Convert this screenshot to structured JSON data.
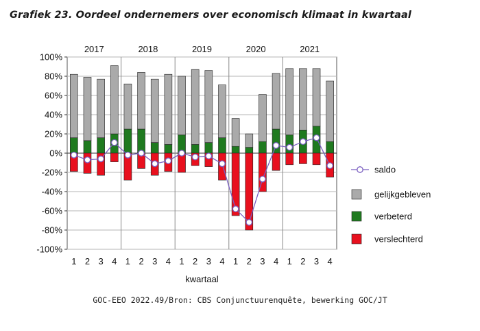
{
  "title": "Grafiek 23. Oordeel ondernemers over economisch klimaat in kwartaal",
  "source": "GOC-EEO 2022.49/Bron: CBS Conjunctuurenquête, bewerking GOC/JT",
  "colors": {
    "gelijkgebleven": "#aaaaaa",
    "verbeterd": "#1f7a1f",
    "verslechterd": "#e8101e",
    "saldo": "#7a5fc0"
  },
  "chart_data": {
    "type": "bar",
    "xlabel": "kwartaal",
    "ylim": [
      -100,
      100
    ],
    "y_ticks": [
      "100%",
      "80%",
      "60%",
      "40%",
      "20%",
      "0%",
      "-20%",
      "-40%",
      "-60%",
      "-80%",
      "-100%"
    ],
    "grid": true,
    "legend_position": "right",
    "years": [
      "2017",
      "2018",
      "2019",
      "2020",
      "2021"
    ],
    "categories": [
      "1",
      "2",
      "3",
      "4",
      "1",
      "2",
      "3",
      "4",
      "1",
      "2",
      "3",
      "4",
      "1",
      "2",
      "3",
      "4",
      "1",
      "2",
      "3",
      "4"
    ],
    "series": [
      {
        "name": "saldo",
        "kind": "line",
        "values": [
          -2,
          -7,
          -6,
          11,
          -2,
          0,
          -11,
          -8,
          0,
          -4,
          -3,
          -11,
          -58,
          -72,
          -27,
          8,
          6,
          12,
          16,
          -13
        ]
      },
      {
        "name": "gelijkgebleven",
        "kind": "stacked-bar",
        "values": [
          66,
          66,
          61,
          71,
          47,
          59,
          66,
          73,
          61,
          78,
          75,
          55,
          29,
          14,
          49,
          58,
          69,
          64,
          60,
          63
        ]
      },
      {
        "name": "verbeterd",
        "kind": "stacked-bar",
        "values": [
          16,
          13,
          16,
          20,
          25,
          25,
          11,
          9,
          19,
          9,
          11,
          16,
          7,
          6,
          12,
          25,
          19,
          24,
          28,
          12
        ]
      },
      {
        "name": "verslechterd",
        "kind": "stacked-bar",
        "values": [
          -19,
          -21,
          -23,
          -9,
          -28,
          -16,
          -23,
          -19,
          -20,
          -13,
          -14,
          -28,
          -65,
          -80,
          -40,
          -18,
          -12,
          -11,
          -12,
          -25
        ]
      }
    ]
  }
}
